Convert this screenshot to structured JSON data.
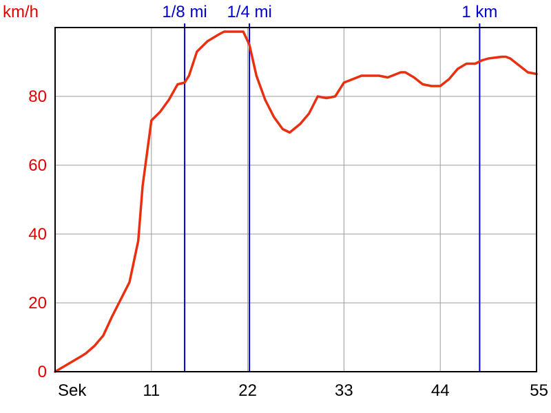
{
  "chart_data": {
    "type": "line",
    "title": "",
    "xlabel": "Sek",
    "ylabel": "km/h",
    "xlim": [
      0,
      55
    ],
    "ylim": [
      0,
      100
    ],
    "x_ticks": [
      {
        "value": 0,
        "label": "Sek"
      },
      {
        "value": 11,
        "label": "11"
      },
      {
        "value": 22,
        "label": "22"
      },
      {
        "value": 33,
        "label": "33"
      },
      {
        "value": 44,
        "label": "44"
      },
      {
        "value": 55,
        "label": "55"
      }
    ],
    "y_ticks": [
      0,
      20,
      40,
      60,
      80
    ],
    "grid": true,
    "colors": {
      "line": "#e83010",
      "y_text": "#e00000",
      "marker": "#0000cc",
      "grid": "#999999"
    },
    "series": [
      {
        "name": "",
        "x": [
          0,
          1,
          2,
          3,
          3.5,
          4.5,
          5.5,
          6.5,
          7.5,
          8.5,
          9.5,
          10,
          11,
          12,
          13,
          14,
          14.8,
          15.3,
          16.2,
          17.4,
          18.7,
          19.3,
          20,
          20.8,
          21.5,
          22.2,
          23,
          24,
          25,
          26,
          26.8,
          28,
          29,
          30,
          31,
          32,
          33,
          34,
          35,
          36,
          37,
          38,
          38.5,
          39.5,
          40,
          41,
          42,
          43,
          44,
          45,
          46,
          47,
          48,
          48.8,
          49.5,
          51,
          51.5,
          52,
          53,
          54,
          55
        ],
        "values": [
          0,
          1.5,
          3,
          4.5,
          5.3,
          7.5,
          10.5,
          16,
          21,
          26,
          38,
          54,
          73,
          75.5,
          79,
          83.5,
          84,
          86,
          93,
          96,
          98,
          98.8,
          98.8,
          98.8,
          98.8,
          95,
          86,
          79,
          74,
          70.5,
          69.5,
          72,
          75,
          80,
          79.5,
          80,
          84,
          85,
          86,
          86,
          86,
          85.5,
          86,
          87,
          87,
          85.5,
          83.5,
          83,
          83,
          85,
          88,
          89.5,
          89.5,
          90.5,
          91,
          91.5,
          91.5,
          91,
          89,
          87,
          86.5
        ]
      }
    ],
    "markers": [
      {
        "label": "1/8 mi",
        "x": 14.8
      },
      {
        "label": "1/4 mi",
        "x": 22.2
      },
      {
        "label": "1 km",
        "x": 48.5
      }
    ]
  }
}
